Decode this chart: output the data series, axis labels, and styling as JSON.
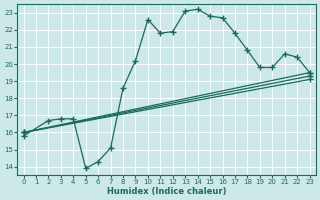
{
  "xlabel": "Humidex (Indice chaleur)",
  "bg_color": "#cce8e8",
  "grid_color": "#b0d0d0",
  "line_color": "#1a6b5a",
  "xlim": [
    -0.5,
    23.5
  ],
  "ylim": [
    13.5,
    23.5
  ],
  "xticks": [
    0,
    1,
    2,
    3,
    4,
    5,
    6,
    7,
    8,
    9,
    10,
    11,
    12,
    13,
    14,
    15,
    16,
    17,
    18,
    19,
    20,
    21,
    22,
    23
  ],
  "yticks": [
    14,
    15,
    16,
    17,
    18,
    19,
    20,
    21,
    22,
    23
  ],
  "line1_x": [
    0,
    2,
    3,
    4,
    5,
    6,
    7,
    8,
    9,
    10,
    11,
    12,
    13,
    14,
    15,
    16,
    17,
    18,
    19,
    20,
    21,
    22,
    23
  ],
  "line1_y": [
    15.8,
    16.7,
    16.8,
    16.8,
    13.9,
    14.3,
    15.1,
    18.6,
    20.2,
    22.6,
    21.8,
    21.9,
    23.1,
    23.2,
    22.8,
    22.7,
    21.8,
    20.8,
    19.8,
    19.8,
    20.6,
    20.4,
    19.5
  ],
  "line2_x": [
    0,
    23
  ],
  "line2_y": [
    16.0,
    19.5
  ],
  "line3_x": [
    0,
    23
  ],
  "line3_y": [
    16.0,
    19.3
  ],
  "line4_x": [
    0,
    23
  ],
  "line4_y": [
    16.0,
    19.1
  ],
  "markersize": 2.5,
  "linewidth": 0.9
}
